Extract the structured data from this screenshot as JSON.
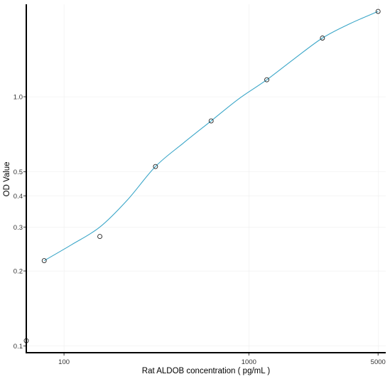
{
  "chart_data": {
    "type": "scatter",
    "xlabel": "Rat ALDOB concentration ( pg/mL )",
    "ylabel": "OD Value",
    "x_scale": "log",
    "y_scale": "log",
    "xlim": [
      62.5,
      5500
    ],
    "ylim": [
      0.094,
      2.35
    ],
    "x_ticks": [
      100,
      1000,
      5000
    ],
    "x_tick_labels": [
      "100",
      "1000",
      "5000"
    ],
    "y_ticks": [
      0.1,
      0.2,
      0.3,
      0.4,
      0.5,
      1.0
    ],
    "y_tick_labels": [
      "0.1",
      "0.2",
      "0.3",
      "0.4",
      "0.5",
      "1.0"
    ],
    "grid": true,
    "series": [
      {
        "points": [
          {
            "x": 62.5,
            "y": 0.105
          },
          {
            "x": 78.125,
            "y": 0.22
          },
          {
            "x": 156.25,
            "y": 0.275
          },
          {
            "x": 312.5,
            "y": 0.525
          },
          {
            "x": 625,
            "y": 0.8
          },
          {
            "x": 1250,
            "y": 1.17
          },
          {
            "x": 2500,
            "y": 1.72
          },
          {
            "x": 5000,
            "y": 2.2
          }
        ],
        "fit_curve": [
          {
            "x": 78.125,
            "y": 0.22
          },
          {
            "x": 110,
            "y": 0.255
          },
          {
            "x": 156.25,
            "y": 0.3
          },
          {
            "x": 220,
            "y": 0.385
          },
          {
            "x": 312.5,
            "y": 0.525
          },
          {
            "x": 440,
            "y": 0.65
          },
          {
            "x": 625,
            "y": 0.8
          },
          {
            "x": 880,
            "y": 0.98
          },
          {
            "x": 1250,
            "y": 1.17
          },
          {
            "x": 1760,
            "y": 1.42
          },
          {
            "x": 2500,
            "y": 1.72
          },
          {
            "x": 3500,
            "y": 1.96
          },
          {
            "x": 5000,
            "y": 2.2
          }
        ]
      }
    ],
    "colors": {
      "curve": "#3aa6c8",
      "points": "#222222",
      "grid": "#ebebeb",
      "axis": "#000000"
    }
  }
}
